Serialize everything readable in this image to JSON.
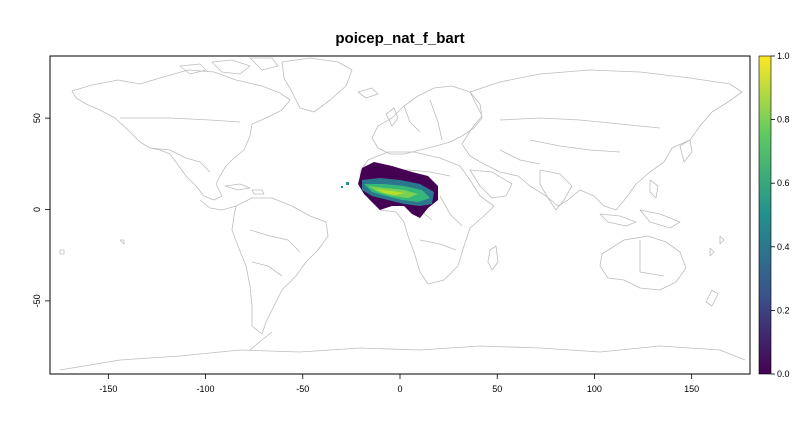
{
  "map": {
    "title": "poicep_nat_f_bart",
    "x_ticks": [
      "-150",
      "-100",
      "-50",
      "0",
      "50",
      "100",
      "150"
    ],
    "x_tick_values": [
      -150,
      -100,
      -50,
      0,
      50,
      100,
      150
    ],
    "y_ticks": [
      "50",
      "0",
      "-50"
    ],
    "y_tick_values": [
      50,
      0,
      -50
    ],
    "xlim": [
      -180,
      180
    ],
    "ylim": [
      -90,
      84
    ],
    "country_border_color": "#bdbdbd",
    "raster_region": "West Africa / Sahel"
  },
  "legend": {
    "type": "continuous colorbar",
    "placement": "right",
    "ticks": [
      "1.0",
      "0.8",
      "0.6",
      "0.4",
      "0.2",
      "0.0"
    ],
    "tick_values": [
      1.0,
      0.8,
      0.6,
      0.4,
      0.2,
      0.0
    ],
    "range": [
      0,
      1
    ],
    "colormap": "viridis",
    "colors": [
      "#440154",
      "#3b528b",
      "#21908d",
      "#5dc963",
      "#fde725"
    ]
  }
}
